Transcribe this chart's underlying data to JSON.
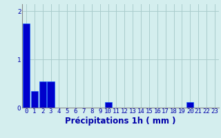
{
  "hours": [
    0,
    1,
    2,
    3,
    4,
    5,
    6,
    7,
    8,
    9,
    10,
    11,
    12,
    13,
    14,
    15,
    16,
    17,
    18,
    19,
    20,
    21,
    22,
    23
  ],
  "values": [
    1.75,
    0.35,
    0.55,
    0.55,
    0,
    0,
    0,
    0,
    0,
    0,
    0.12,
    0,
    0,
    0,
    0,
    0,
    0,
    0,
    0,
    0,
    0.12,
    0,
    0,
    0
  ],
  "bar_color": "#0000cc",
  "bar_edge_color": "#0055ff",
  "background_color": "#d4eeee",
  "grid_color": "#aacccc",
  "text_color": "#0000aa",
  "xlabel": "Précipitations 1h ( mm )",
  "yticks": [
    0,
    1,
    2
  ],
  "ylim": [
    0,
    2.15
  ],
  "xlim": [
    -0.5,
    23.5
  ],
  "tick_fontsize": 6.5,
  "label_fontsize": 8.5
}
